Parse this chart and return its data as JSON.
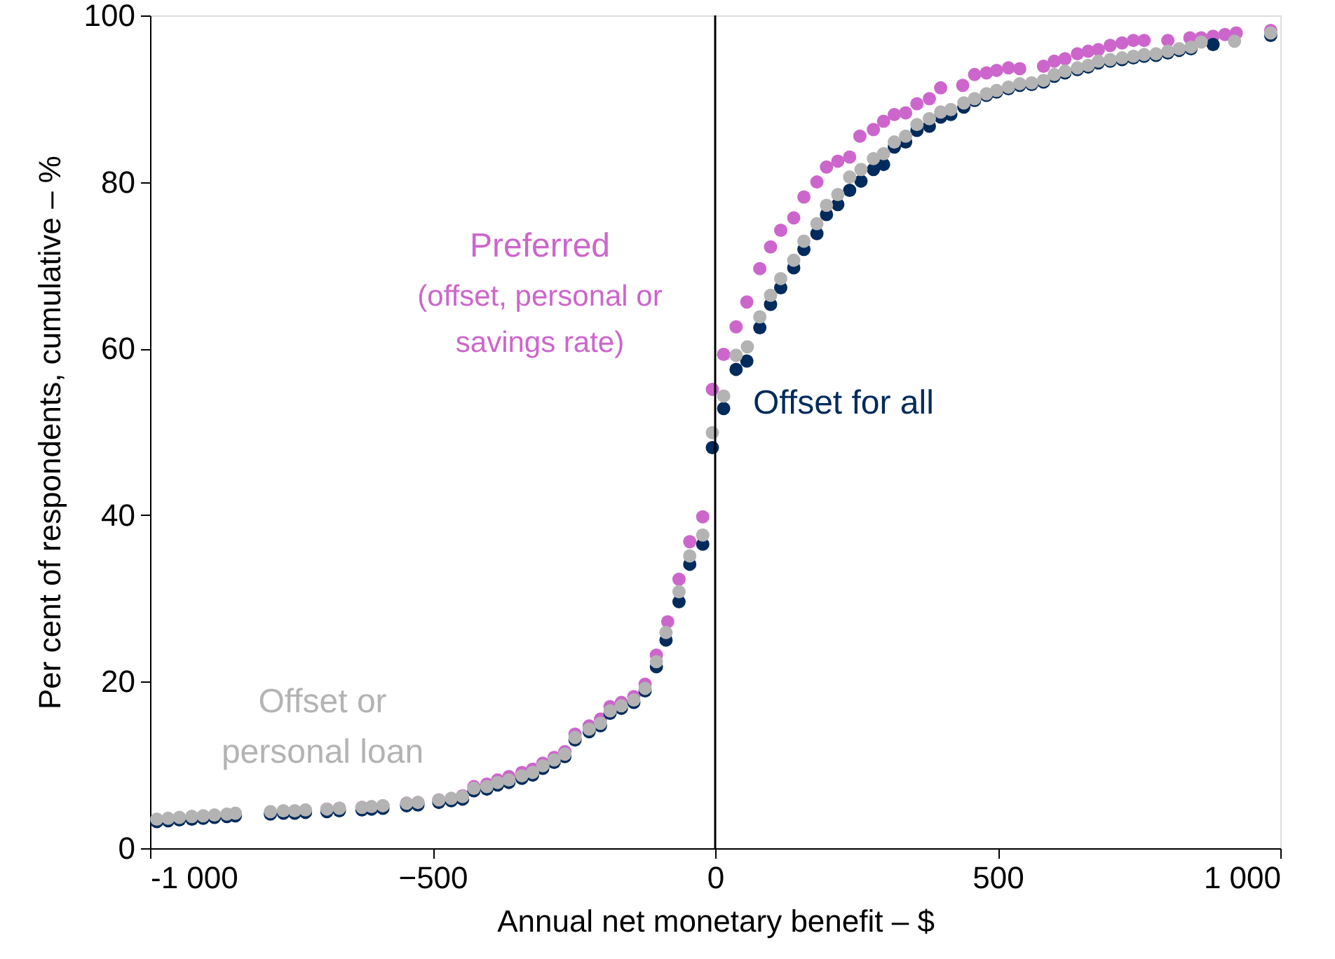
{
  "chart_data": {
    "type": "scatter",
    "xlabel": "Annual net monetary benefit – $",
    "ylabel": "Per cent of respondents, cumulative – %",
    "xlim": [
      -1000,
      1000
    ],
    "xticks": [
      {
        "value": -1000,
        "label": "-1 000"
      },
      -500,
      0,
      500,
      {
        "value": 1000,
        "label": "1 000"
      }
    ],
    "ylim": [
      0,
      100
    ],
    "yticks": [
      0,
      20,
      40,
      60,
      80,
      100
    ],
    "grid": false,
    "legend": false,
    "marker": "circle",
    "ref_lines": [
      {
        "axis": "x",
        "value": 0,
        "color": "#000000"
      }
    ],
    "series": [
      {
        "name": "Preferred\n(offset, personal or\nsavings rate)",
        "color": "#cc66cc",
        "x": [
          -926,
          -906,
          -886,
          -864,
          -849,
          -787,
          -764,
          -744,
          -725,
          -687,
          -665,
          -625,
          -608,
          -588,
          -546,
          -526,
          -489,
          -467,
          -447,
          -427,
          -404,
          -385,
          -365,
          -342,
          -323,
          -305,
          -285,
          -266,
          -248,
          -223,
          -203,
          -186,
          -166,
          -144,
          -124,
          -104,
          -84,
          -64,
          -45,
          -22,
          -5,
          15,
          37,
          56,
          79,
          98,
          116,
          139,
          157,
          180,
          197,
          217,
          238,
          256,
          280,
          298,
          317,
          337,
          357,
          379,
          399,
          438,
          459,
          480,
          498,
          519,
          539,
          581,
          600,
          619,
          641,
          660,
          678,
          699,
          720,
          740,
          759,
          801,
          840,
          860,
          881,
          902,
          922,
          983
        ],
        "values": [
          3.8,
          null,
          null,
          null,
          null,
          null,
          null,
          null,
          null,
          4.7,
          4.8,
          4.9,
          null,
          5.1,
          5.4,
          5.5,
          5.8,
          null,
          6.3,
          7.4,
          7.7,
          8.2,
          8.6,
          9.1,
          9.5,
          10.2,
          10.9,
          11.6,
          13.7,
          14.7,
          15.5,
          17.0,
          17.5,
          18.2,
          19.7,
          23.2,
          27.2,
          32.3,
          36.8,
          39.8,
          55.1,
          59.3,
          62.6,
          65.6,
          69.6,
          72.2,
          74.2,
          75.7,
          78.2,
          80.0,
          81.8,
          82.5,
          83.0,
          85.5,
          86.3,
          87.3,
          88.1,
          88.3,
          89.4,
          90.0,
          91.3,
          91.6,
          92.9,
          93.1,
          93.4,
          93.7,
          93.6,
          93.9,
          94.5,
          94.8,
          95.4,
          95.7,
          95.9,
          96.4,
          96.7,
          97.0,
          97.0,
          97.0,
          97.3,
          97.3,
          97.5,
          97.7,
          97.9,
          98.2
        ]
      },
      {
        "name": "Offset for all",
        "color": "#002b5c",
        "x": [
          -988,
          -968,
          -948,
          -926,
          -906,
          -886,
          -864,
          -849,
          -787,
          -764,
          -744,
          -725,
          -687,
          -665,
          -625,
          -608,
          -588,
          -546,
          -526,
          -489,
          -467,
          -447,
          -427,
          -404,
          -385,
          -365,
          -342,
          -323,
          -305,
          -285,
          -266,
          -248,
          -223,
          -203,
          -186,
          -166,
          -144,
          -124,
          -104,
          -87,
          -64,
          -45,
          -22,
          -5,
          15,
          37,
          56,
          79,
          98,
          116,
          139,
          157,
          180,
          197,
          217,
          238,
          258,
          280,
          298,
          317,
          337,
          357,
          379,
          399,
          417,
          440,
          459,
          480,
          498,
          519,
          539,
          560,
          581,
          600,
          619,
          641,
          660,
          678,
          699,
          720,
          740,
          759,
          780,
          801,
          821,
          842,
          881,
          983
        ],
        "values": [
          3.2,
          3.3,
          3.4,
          3.5,
          3.6,
          3.7,
          3.8,
          3.9,
          4.1,
          4.2,
          4.2,
          4.3,
          4.4,
          4.5,
          4.6,
          4.7,
          4.8,
          5.1,
          5.2,
          5.5,
          5.7,
          5.9,
          6.9,
          7.1,
          7.6,
          7.9,
          8.4,
          8.8,
          9.6,
          10.3,
          11.0,
          13.0,
          14.0,
          14.7,
          16.2,
          16.8,
          17.5,
          18.9,
          21.8,
          25.0,
          29.6,
          34.1,
          36.5,
          48.1,
          52.8,
          57.5,
          58.5,
          62.5,
          65.3,
          67.3,
          69.7,
          71.9,
          73.8,
          76.1,
          77.3,
          79.0,
          80.1,
          81.5,
          82.1,
          84.2,
          84.8,
          86.2,
          86.7,
          87.8,
          88.1,
          89.0,
          89.8,
          90.4,
          90.8,
          91.2,
          91.6,
          91.7,
          92.0,
          92.7,
          93.1,
          93.5,
          93.8,
          94.3,
          94.5,
          94.7,
          94.9,
          95.1,
          95.2,
          95.5,
          95.8,
          96.0,
          96.5,
          97.6
        ]
      },
      {
        "name": "Offset or\npersonal loan",
        "color": "#b3b3b3",
        "x": [
          -988,
          -968,
          -948,
          -926,
          -906,
          -886,
          -864,
          -849,
          -787,
          -764,
          -744,
          -725,
          -687,
          -665,
          -625,
          -608,
          -588,
          -546,
          -526,
          -489,
          -467,
          -447,
          -427,
          -404,
          -385,
          -365,
          -342,
          -323,
          -305,
          -285,
          -266,
          -248,
          -223,
          -203,
          -186,
          -166,
          -144,
          -124,
          -104,
          -87,
          -64,
          -45,
          -22,
          -5,
          15,
          37,
          57,
          79,
          98,
          116,
          139,
          157,
          180,
          197,
          217,
          238,
          258,
          280,
          298,
          317,
          337,
          357,
          379,
          399,
          417,
          440,
          459,
          480,
          498,
          519,
          539,
          560,
          581,
          600,
          619,
          641,
          660,
          678,
          699,
          720,
          740,
          759,
          780,
          801,
          821,
          842,
          860,
          919,
          983
        ],
        "values": [
          3.5,
          3.6,
          3.7,
          3.8,
          3.9,
          4.0,
          4.1,
          4.2,
          4.4,
          4.5,
          4.5,
          4.6,
          4.7,
          4.8,
          4.9,
          5.0,
          5.1,
          5.4,
          5.5,
          5.8,
          6.0,
          6.2,
          7.2,
          7.4,
          7.9,
          8.2,
          8.7,
          9.1,
          9.9,
          10.6,
          11.3,
          13.3,
          14.3,
          15.0,
          16.5,
          17.1,
          17.8,
          19.2,
          22.4,
          25.9,
          30.8,
          35.1,
          37.6,
          49.9,
          54.3,
          59.2,
          60.2,
          63.8,
          66.4,
          68.4,
          70.6,
          72.9,
          75.0,
          77.2,
          78.5,
          80.6,
          81.5,
          82.8,
          83.4,
          84.8,
          85.5,
          86.9,
          87.6,
          88.4,
          88.7,
          89.5,
          90.0,
          90.6,
          91.0,
          91.4,
          91.8,
          91.9,
          92.2,
          92.9,
          93.3,
          93.7,
          94.0,
          94.5,
          94.7,
          94.9,
          95.1,
          95.3,
          95.4,
          95.7,
          96.0,
          96.2,
          96.8,
          96.9,
          97.9
        ]
      }
    ]
  }
}
